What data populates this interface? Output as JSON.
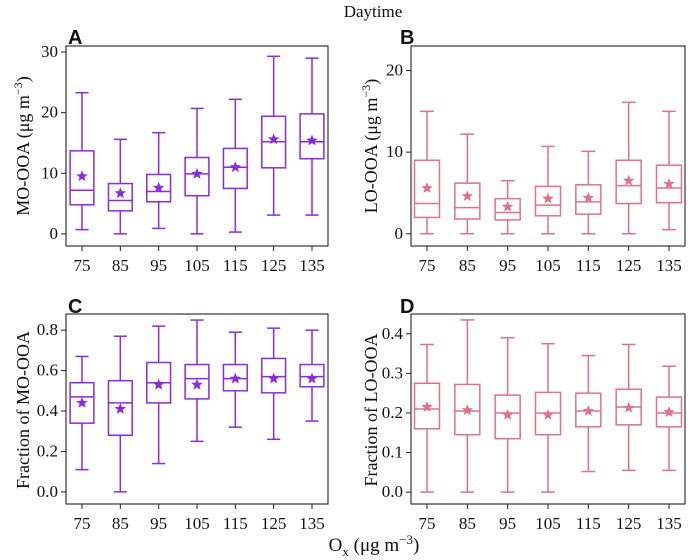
{
  "figure": {
    "title": "Daytime",
    "xlabel_main": "O",
    "xlabel_sub": "x",
    "xlabel_unit": "(μg m",
    "xlabel_exp": "−3",
    "xlabel_close": ")"
  },
  "chart_data": [
    {
      "type": "box",
      "panel": "A",
      "ylabel": "MO-OOA (μg m",
      "ylabel_exp": "−3",
      "ylabel_close": ")",
      "ylim": [
        -2,
        31
      ],
      "yticks": [
        0,
        10,
        20,
        30
      ],
      "ytick_labels": [
        "0",
        "10",
        "20",
        "30"
      ],
      "color": "#8a2be2",
      "categories": [
        "75",
        "85",
        "95",
        "105",
        "115",
        "125",
        "135"
      ],
      "boxes": [
        {
          "whisker_low": 0.7,
          "q1": 4.8,
          "median": 7.2,
          "q3": 13.7,
          "whisker_high": 23.3,
          "mean": 9.5
        },
        {
          "whisker_low": 0.0,
          "q1": 3.8,
          "median": 5.5,
          "q3": 8.3,
          "whisker_high": 15.6,
          "mean": 6.7
        },
        {
          "whisker_low": 0.9,
          "q1": 5.3,
          "median": 7.0,
          "q3": 9.8,
          "whisker_high": 16.7,
          "mean": 7.6
        },
        {
          "whisker_low": 0.0,
          "q1": 6.3,
          "median": 9.9,
          "q3": 12.6,
          "whisker_high": 20.7,
          "mean": 9.9
        },
        {
          "whisker_low": 0.3,
          "q1": 7.5,
          "median": 11.0,
          "q3": 14.1,
          "whisker_high": 22.2,
          "mean": 11.0
        },
        {
          "whisker_low": 3.1,
          "q1": 10.9,
          "median": 15.2,
          "q3": 19.4,
          "whisker_high": 29.3,
          "mean": 15.6
        },
        {
          "whisker_low": 3.1,
          "q1": 12.4,
          "median": 15.2,
          "q3": 19.8,
          "whisker_high": 29.0,
          "mean": 15.4
        }
      ]
    },
    {
      "type": "box",
      "panel": "B",
      "ylabel": "LO-OOA (μg m",
      "ylabel_exp": "−3",
      "ylabel_close": ")",
      "ylim": [
        -1.5,
        23
      ],
      "yticks": [
        0,
        10,
        20
      ],
      "ytick_labels": [
        "0",
        "10",
        "20"
      ],
      "color": "#e0708e",
      "categories": [
        "75",
        "85",
        "95",
        "105",
        "115",
        "125",
        "135"
      ],
      "boxes": [
        {
          "whisker_low": 0.0,
          "q1": 2.0,
          "median": 3.7,
          "q3": 9.0,
          "whisker_high": 15.0,
          "mean": 5.6
        },
        {
          "whisker_low": 0.0,
          "q1": 1.8,
          "median": 3.2,
          "q3": 6.2,
          "whisker_high": 12.2,
          "mean": 4.6
        },
        {
          "whisker_low": 0.0,
          "q1": 1.7,
          "median": 2.6,
          "q3": 4.3,
          "whisker_high": 6.5,
          "mean": 3.3
        },
        {
          "whisker_low": 0.0,
          "q1": 2.2,
          "median": 3.5,
          "q3": 5.8,
          "whisker_high": 10.7,
          "mean": 4.3
        },
        {
          "whisker_low": 0.0,
          "q1": 2.4,
          "median": 3.9,
          "q3": 6.0,
          "whisker_high": 10.1,
          "mean": 4.4
        },
        {
          "whisker_low": 0.0,
          "q1": 3.7,
          "median": 5.9,
          "q3": 9.0,
          "whisker_high": 16.1,
          "mean": 6.5
        },
        {
          "whisker_low": 0.5,
          "q1": 3.8,
          "median": 5.6,
          "q3": 8.4,
          "whisker_high": 15.0,
          "mean": 6.1
        }
      ]
    },
    {
      "type": "box",
      "panel": "C",
      "ylabel": "Fraction  of  MO-OOA",
      "ylim": [
        -0.06,
        0.88
      ],
      "yticks": [
        0.0,
        0.2,
        0.4,
        0.6,
        0.8
      ],
      "ytick_labels": [
        "0.0",
        "0.2",
        "0.4",
        "0.6",
        "0.8"
      ],
      "color": "#8a2be2",
      "categories": [
        "75",
        "85",
        "95",
        "105",
        "115",
        "125",
        "135"
      ],
      "boxes": [
        {
          "whisker_low": 0.11,
          "q1": 0.34,
          "median": 0.47,
          "q3": 0.54,
          "whisker_high": 0.67,
          "mean": 0.44
        },
        {
          "whisker_low": 0.0,
          "q1": 0.28,
          "median": 0.44,
          "q3": 0.55,
          "whisker_high": 0.77,
          "mean": 0.41
        },
        {
          "whisker_low": 0.14,
          "q1": 0.44,
          "median": 0.54,
          "q3": 0.64,
          "whisker_high": 0.82,
          "mean": 0.53
        },
        {
          "whisker_low": 0.25,
          "q1": 0.46,
          "median": 0.56,
          "q3": 0.63,
          "whisker_high": 0.85,
          "mean": 0.53
        },
        {
          "whisker_low": 0.32,
          "q1": 0.5,
          "median": 0.56,
          "q3": 0.63,
          "whisker_high": 0.79,
          "mean": 0.56
        },
        {
          "whisker_low": 0.26,
          "q1": 0.49,
          "median": 0.57,
          "q3": 0.66,
          "whisker_high": 0.81,
          "mean": 0.56
        },
        {
          "whisker_low": 0.35,
          "q1": 0.52,
          "median": 0.57,
          "q3": 0.63,
          "whisker_high": 0.8,
          "mean": 0.56
        }
      ]
    },
    {
      "type": "box",
      "panel": "D",
      "ylabel": "Fraction  of  LO-OOA",
      "ylim": [
        -0.03,
        0.45
      ],
      "yticks": [
        0.0,
        0.1,
        0.2,
        0.3,
        0.4
      ],
      "ytick_labels": [
        "0.0",
        "0.1",
        "0.2",
        "0.3",
        "0.4"
      ],
      "color": "#e0708e",
      "categories": [
        "75",
        "85",
        "95",
        "105",
        "115",
        "125",
        "135"
      ],
      "boxes": [
        {
          "whisker_low": 0.0,
          "q1": 0.16,
          "median": 0.21,
          "q3": 0.275,
          "whisker_high": 0.373,
          "mean": 0.215
        },
        {
          "whisker_low": 0.0,
          "q1": 0.145,
          "median": 0.205,
          "q3": 0.272,
          "whisker_high": 0.435,
          "mean": 0.207
        },
        {
          "whisker_low": 0.0,
          "q1": 0.135,
          "median": 0.2,
          "q3": 0.245,
          "whisker_high": 0.39,
          "mean": 0.195
        },
        {
          "whisker_low": 0.0,
          "q1": 0.145,
          "median": 0.2,
          "q3": 0.252,
          "whisker_high": 0.375,
          "mean": 0.195
        },
        {
          "whisker_low": 0.052,
          "q1": 0.165,
          "median": 0.205,
          "q3": 0.25,
          "whisker_high": 0.345,
          "mean": 0.205
        },
        {
          "whisker_low": 0.055,
          "q1": 0.17,
          "median": 0.215,
          "q3": 0.26,
          "whisker_high": 0.373,
          "mean": 0.213
        },
        {
          "whisker_low": 0.055,
          "q1": 0.165,
          "median": 0.2,
          "q3": 0.24,
          "whisker_high": 0.318,
          "mean": 0.202
        }
      ]
    }
  ]
}
